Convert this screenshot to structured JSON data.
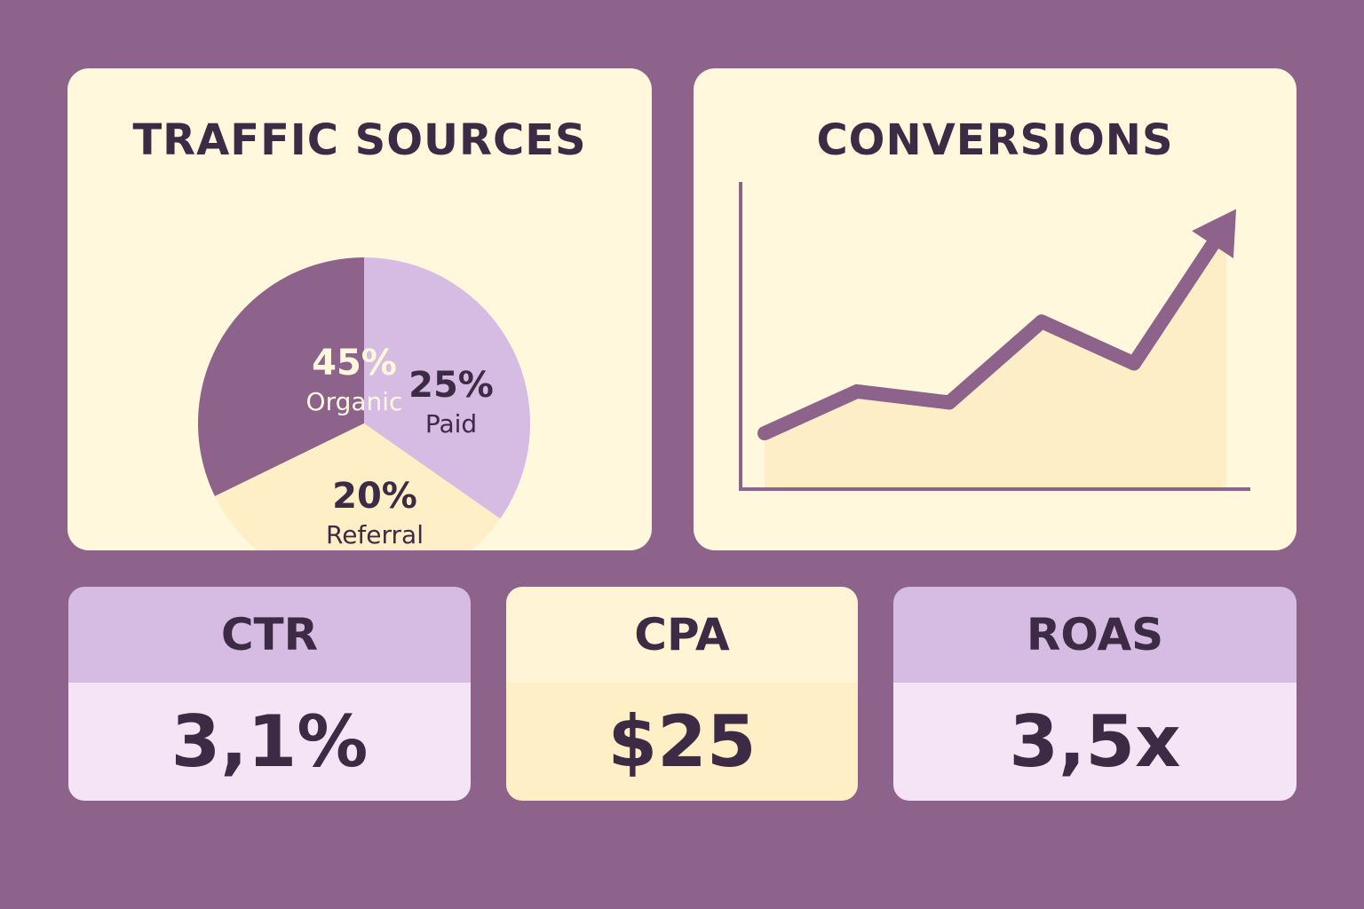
{
  "traffic": {
    "title": "TRAFFIC SOURCES"
  },
  "conversions": {
    "title": "CONVERSIONS"
  },
  "chart_data": [
    {
      "type": "pie",
      "title": "TRAFFIC SOURCES",
      "slices": [
        {
          "label": "Organic",
          "value": 45,
          "display": "45%",
          "color": "#8d628b",
          "text_color": "#fff8dc"
        },
        {
          "label": "Paid",
          "value": 25,
          "display": "25%",
          "color": "#d6bbe2",
          "text_color": "#3d2b45"
        },
        {
          "label": "Referral",
          "value": 20,
          "display": "20%",
          "color": "#feefc6",
          "text_color": "#3d2b45"
        }
      ]
    },
    {
      "type": "line",
      "title": "CONVERSIONS",
      "xlabel": "",
      "ylabel": "",
      "x": [
        0,
        1,
        2,
        3,
        4,
        5
      ],
      "values": [
        2,
        3.5,
        3.1,
        6,
        4.5,
        9.5
      ],
      "ylim": [
        0,
        11
      ],
      "line_color": "#8d628b",
      "fill_color": "#fdeec8",
      "arrow": true
    }
  ],
  "kpis": [
    {
      "label": "CTR",
      "value": "3,1%"
    },
    {
      "label": "CPA",
      "value": "$25"
    },
    {
      "label": "ROAS",
      "value": "3,5x"
    }
  ]
}
